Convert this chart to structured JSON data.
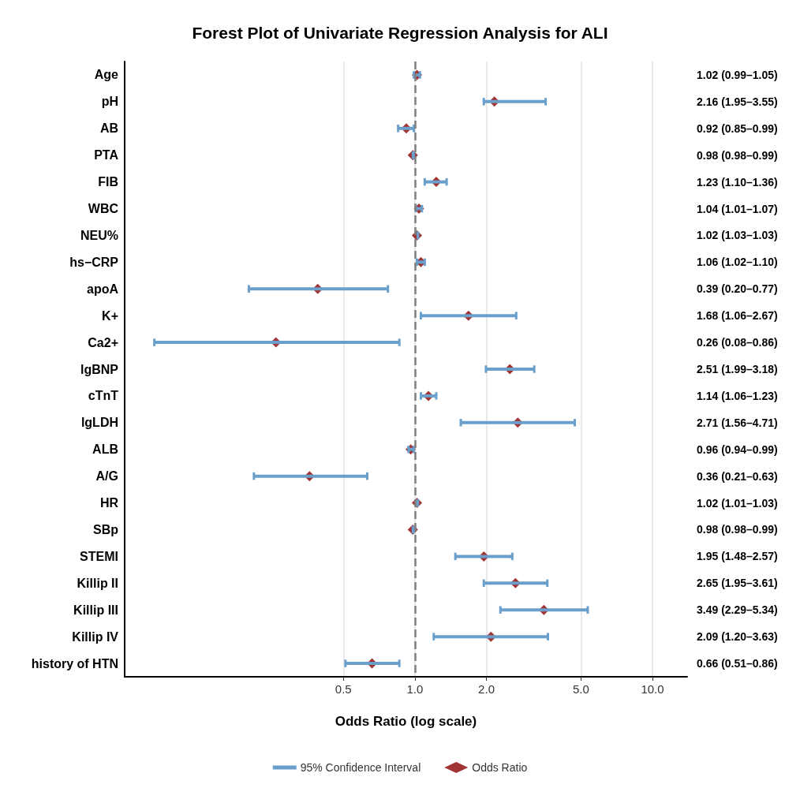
{
  "chart_data": {
    "type": "scatter",
    "title": "Forest Plot of Univariate Regression Analysis for ALI",
    "xlabel": "Odds Ratio (log scale)",
    "orientation": "horizontal",
    "log": "x",
    "grid": "x",
    "legend": "bottom",
    "categories": [
      "Age",
      "pH",
      "AB",
      "PTA",
      "FIB",
      "WBC",
      "NEU%",
      "hs−CRP",
      "apoA",
      "K+",
      "Ca2+",
      "lgBNP",
      "cTnT",
      "lgLDH",
      "ALB",
      "A/G",
      "HR",
      "SBp",
      "STEMI",
      "Killip II",
      "Killip III",
      "Killip IV",
      "history of HTN"
    ],
    "xlim": [
      0.06,
      14
    ],
    "xticks": [
      0.5,
      {
        "value": 1,
        "label": "1.0"
      },
      {
        "value": 2,
        "label": "2.0"
      },
      {
        "value": 5,
        "label": "5.0"
      },
      {
        "value": 10,
        "label": "10.0"
      }
    ],
    "ref_lines": [
      {
        "axis": "x",
        "value": 1,
        "color": "#7f7f7f",
        "line_style": "dashed"
      }
    ],
    "series": [
      {
        "name": "95% Confidence Interval",
        "color": "#6a9fcb",
        "marker": "none",
        "values": [
          null,
          null,
          null,
          null,
          null,
          null,
          null,
          null,
          null,
          null,
          null,
          null,
          null,
          null,
          null,
          null,
          null,
          null,
          null,
          null,
          null,
          null,
          null
        ]
      },
      {
        "name": "Odds Ratio",
        "color": "#8b0000",
        "marker": "diamond",
        "values": [
          1.02,
          2.16,
          0.92,
          0.98,
          1.23,
          1.04,
          1.02,
          1.06,
          0.39,
          1.68,
          0.26,
          2.51,
          1.14,
          2.71,
          0.96,
          0.36,
          1.02,
          0.98,
          1.95,
          2.65,
          3.49,
          2.09,
          0.66
        ],
        "errors": [
          [
            0.99,
            1.05
          ],
          [
            1.95,
            3.55
          ],
          [
            0.85,
            0.99
          ],
          [
            0.98,
            0.99
          ],
          [
            1.1,
            1.36
          ],
          [
            1.01,
            1.07
          ],
          [
            1.03,
            1.03
          ],
          [
            1.02,
            1.1
          ],
          [
            0.2,
            0.77
          ],
          [
            1.06,
            2.67
          ],
          [
            0.08,
            0.86
          ],
          [
            1.99,
            3.18
          ],
          [
            1.06,
            1.23
          ],
          [
            1.56,
            4.71
          ],
          [
            0.94,
            0.99
          ],
          [
            0.21,
            0.63
          ],
          [
            1.01,
            1.03
          ],
          [
            0.98,
            0.99
          ],
          [
            1.48,
            2.57
          ],
          [
            1.95,
            3.61
          ],
          [
            2.29,
            5.34
          ],
          [
            1.2,
            3.63
          ],
          [
            0.51,
            0.86
          ]
        ],
        "value_labels": [
          "1.02 (0.99–1.05)",
          "2.16 (1.95–3.55)",
          "0.92 (0.85–0.99)",
          "0.98 (0.98–0.99)",
          "1.23 (1.10–1.36)",
          "1.04 (1.01–1.07)",
          "1.02 (1.03–1.03)",
          "1.06 (1.02–1.10)",
          "0.39 (0.20–0.77)",
          "1.68 (1.06–2.67)",
          "0.26 (0.08–0.86)",
          "2.51 (1.99–3.18)",
          "1.14 (1.06–1.23)",
          "2.71 (1.56–4.71)",
          "0.96 (0.94–0.99)",
          "0.36 (0.21–0.63)",
          "1.02 (1.01–1.03)",
          "0.98 (0.98–0.99)",
          "1.95 (1.48–2.57)",
          "2.65 (1.95–3.61)",
          "3.49 (2.29–5.34)",
          "2.09 (1.20–3.63)",
          "0.66 (0.51–0.86)"
        ]
      }
    ]
  }
}
